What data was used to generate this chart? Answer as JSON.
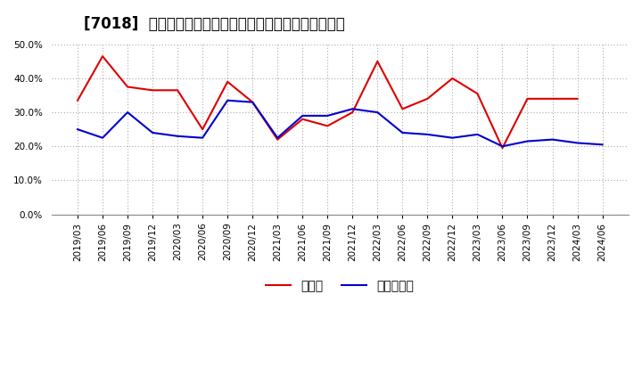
{
  "title": "[7018]  現預金、有利子負債の総資産に対する比率の推移",
  "x_labels": [
    "2019/03",
    "2019/06",
    "2019/09",
    "2019/12",
    "2020/03",
    "2020/06",
    "2020/09",
    "2020/12",
    "2021/03",
    "2021/06",
    "2021/09",
    "2021/12",
    "2022/03",
    "2022/06",
    "2022/09",
    "2022/12",
    "2023/03",
    "2023/06",
    "2023/09",
    "2023/12",
    "2024/03",
    "2024/06"
  ],
  "cash": [
    33.5,
    46.5,
    37.5,
    36.5,
    36.5,
    25.0,
    39.0,
    33.0,
    22.0,
    28.0,
    26.0,
    30.0,
    45.0,
    31.0,
    34.0,
    40.0,
    35.5,
    19.5,
    34.0,
    34.0,
    34.0,
    null
  ],
  "debt": [
    25.0,
    22.5,
    30.0,
    24.0,
    23.0,
    22.5,
    33.5,
    33.0,
    22.5,
    29.0,
    29.0,
    31.0,
    30.0,
    24.0,
    23.5,
    22.5,
    23.5,
    20.0,
    21.5,
    22.0,
    21.0,
    20.5
  ],
  "cash_color": "#dd0000",
  "debt_color": "#0000cc",
  "background_color": "#ffffff",
  "plot_bg_color": "#ffffff",
  "grid_color": "#aaaaaa",
  "ylim": [
    0,
    50
  ],
  "yticks": [
    0.0,
    10.0,
    20.0,
    30.0,
    40.0,
    50.0
  ],
  "legend_cash": "現預金",
  "legend_debt": "有利子負債",
  "title_fontsize": 12,
  "legend_fontsize": 10,
  "tick_fontsize": 7.5
}
